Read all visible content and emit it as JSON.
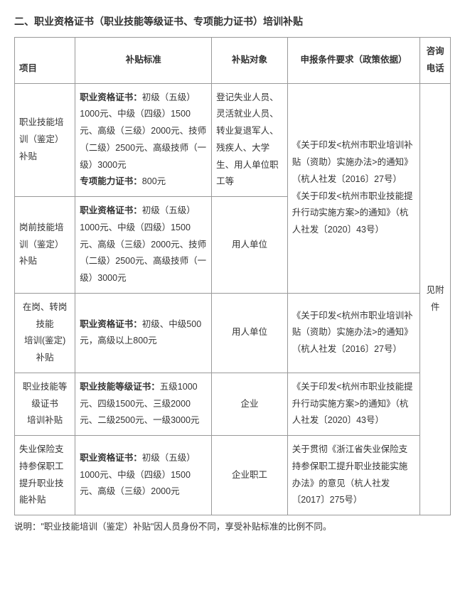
{
  "title": "二、职业资格证书（职业技能等级证书、专项能力证书）培训补贴",
  "headers": {
    "project": "项目",
    "standard": "补贴标准",
    "target": "补贴对象",
    "requirement": "申报条件要求（政策依据）",
    "tel": "咨询电话"
  },
  "rows": [
    {
      "project": "职业技能培训（鉴定）补贴",
      "std_label1": "职业资格证书：",
      "std_text1": "初级（五级）1000元、中级（四级）1500元、高级（三级）2000元、技师（二级）2500元、高级技师（一级）3000元",
      "std_label2": "专项能力证书：",
      "std_text2": "800元",
      "target": "登记失业人员、灵活就业人员、转业复退军人、残疾人、大学生、用人单位职工等"
    },
    {
      "project": "岗前技能培训（鉴定）补贴",
      "std_label1": "职业资格证书：",
      "std_text1": "初级（五级）1000元、中级（四级）1500元、高级（三级）2000元、技师（二级）2500元、高级技师（一级）3000元",
      "target": "用人单位"
    },
    {
      "project": "在岗、转岗技能\n培训(鉴定)\n补贴",
      "std_label1": "职业资格证书：",
      "std_text1": "初级、中级500元，高级以上800元",
      "target": "用人单位",
      "req": "《关于印发<杭州市职业培训补贴（资助）实施办法>的通知》（杭人社发〔2016〕27号）"
    },
    {
      "project": "职业技能等级证书\n培训补贴",
      "std_label1": "职业技能等级证书：",
      "std_text1": "五级1000元、四级1500元、三级2000元、二级2500元、一级3000元",
      "target": "企业",
      "req": "《关于印发<杭州市职业技能提升行动实施方案>的通知》（杭人社发〔2020〕43号）"
    },
    {
      "project": "失业保险支持参保职工提升职业技能补贴",
      "std_label1": "职业资格证书：",
      "std_text1": "初级（五级）1000元、中级（四级）1500元、高级（三级）2000元",
      "target": "企业职工",
      "req": "关于贯彻《浙江省失业保险支持参保职工提升职业技能实施办法》的意见（杭人社发〔2017〕275号）"
    }
  ],
  "req_merged": "《关于印发<杭州市职业培训补贴（资助）实施办法>的通知》（杭人社发〔2016〕27号）\n《关于印发<杭州市职业技能提升行动实施方案>的通知》（杭人社发〔2020〕43号）",
  "tel_merged": "见附件",
  "note": "说明：\"职业技能培训（鉴定）补贴\"因人员身份不同，享受补贴标准的比例不同。"
}
